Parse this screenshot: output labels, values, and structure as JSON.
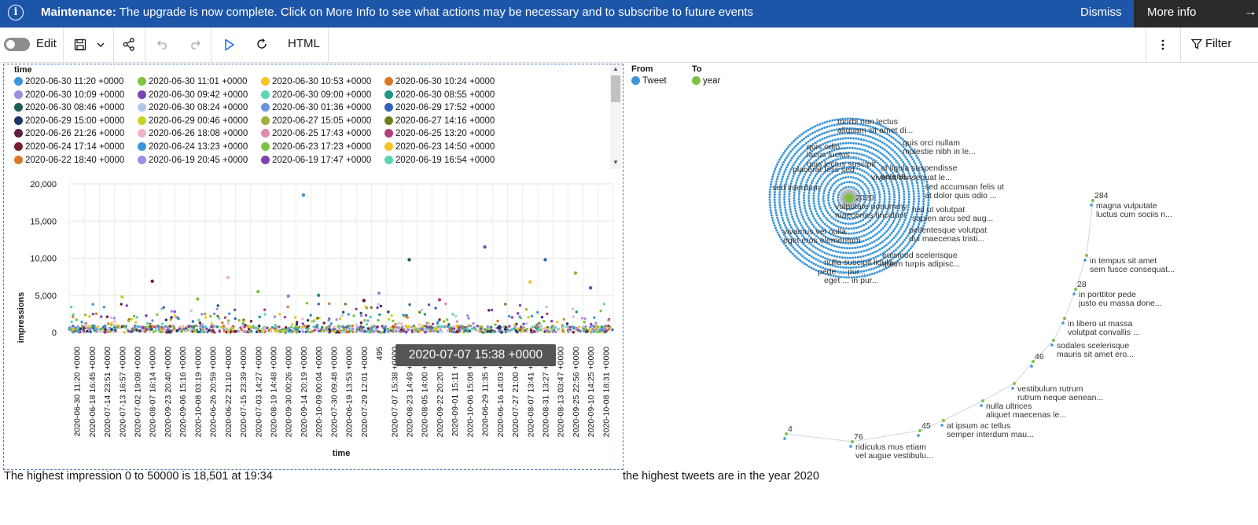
{
  "banner": {
    "title": "Maintenance:",
    "message": "The upgrade is now complete. Click on More Info to see what actions may be necessary and to subscribe to future events",
    "dismiss": "Dismiss",
    "more_info": "More info",
    "info_icon": "i",
    "arrow_icon": "→"
  },
  "toolbar": {
    "edit_label": "Edit",
    "html_label": "HTML",
    "filter_label": "Filter"
  },
  "legend": {
    "title": "time",
    "items": [
      {
        "label": "2020-06-30 11:20 +0000",
        "color": "#3a96d8"
      },
      {
        "label": "2020-06-30 11:01 +0000",
        "color": "#7ec242"
      },
      {
        "label": "2020-06-30 10:53 +0000",
        "color": "#f2c425"
      },
      {
        "label": "2020-06-30 10:24 +0000",
        "color": "#d8792c"
      },
      {
        "label": "2020-06-30 10:09 +0000",
        "color": "#9c8ee0"
      },
      {
        "label": "2020-06-30 09:42 +0000",
        "color": "#7c42b0"
      },
      {
        "label": "2020-06-30 09:00 +0000",
        "color": "#5cd6b2"
      },
      {
        "label": "2020-06-30 08:55 +0000",
        "color": "#1e968a"
      },
      {
        "label": "2020-06-30 08:46 +0000",
        "color": "#1b5e57"
      },
      {
        "label": "2020-06-30 08:24 +0000",
        "color": "#b3c7ec"
      },
      {
        "label": "2020-06-30 01:36 +0000",
        "color": "#6e93de"
      },
      {
        "label": "2020-06-29 17:52 +0000",
        "color": "#3462b8"
      },
      {
        "label": "2020-06-29 15:00 +0000",
        "color": "#1f3568"
      },
      {
        "label": "2020-06-29 00:46 +0000",
        "color": "#c9d12b"
      },
      {
        "label": "2020-06-27 15:05 +0000",
        "color": "#a3ae35"
      },
      {
        "label": "2020-06-27 14:16 +0000",
        "color": "#737c1d"
      },
      {
        "label": "2020-06-26 21:26 +0000",
        "color": "#611e44"
      },
      {
        "label": "2020-06-26 18:08 +0000",
        "color": "#f2b2cf"
      },
      {
        "label": "2020-06-25 17:43 +0000",
        "color": "#e389b6"
      },
      {
        "label": "2020-06-25 13:20 +0000",
        "color": "#b03d7c"
      },
      {
        "label": "2020-06-24 17:14 +0000",
        "color": "#7a1d33"
      },
      {
        "label": "2020-06-24 13:23 +0000",
        "color": "#3a96d8"
      },
      {
        "label": "2020-06-23 17:23 +0000",
        "color": "#7ec242"
      },
      {
        "label": "2020-06-23 14:50 +0000",
        "color": "#f2c425"
      },
      {
        "label": "2020-06-22 18:40 +0000",
        "color": "#d8792c"
      },
      {
        "label": "2020-06-19 20:45 +0000",
        "color": "#9c8ee0"
      },
      {
        "label": "2020-06-19 17:47 +0000",
        "color": "#7c42b0"
      },
      {
        "label": "2020-06-19 16:54 +0000",
        "color": "#5cd6b2"
      }
    ]
  },
  "chart_data": {
    "type": "scatter",
    "xlabel": "time",
    "ylabel": "impressions",
    "ylim": [
      0,
      20000
    ],
    "yticks": [
      "0",
      "5,000",
      "10,000",
      "15,000",
      "20,000"
    ],
    "x_ticks": [
      "2020-06-30 11:20 +0000",
      "2020-06-18 16:45 +0000",
      "2020-07-14 23:51 +0000",
      "2020-07-13 16:57 +0000",
      "2020-07-02 19:08 +0000",
      "2020-08-07 16:14 +0000",
      "2020-09-23 20:40 +0000",
      "2020-09-06 15:16 +0000",
      "2020-10-08 03:19 +0000",
      "2020-06-26 20:59 +0000",
      "2020-06-22 21:10 +0000",
      "2020-07-15 23:39 +0000",
      "2020-07-03 14:27 +0000",
      "2020-08-19 14:48 +0000",
      "2020-09-30 00:26 +0000",
      "2020-09-14 20:19 +0000",
      "2020-10-09 00:04 +0000",
      "2020-07-30 09:48 +0000",
      "2020-06-19 13:53 +0000",
      "2020-07-29 12:01 +0000",
      "495",
      "2020-07-07 15:38 +0000",
      "2020-08-23 14:49 +0000",
      "2020-08-05 14:00 +0000",
      "2020-09-22 20:20 +0000",
      "2020-09-01 15:11 +0000",
      "2020-10-06 15:08 +0000",
      "2020-06-29 11:35 +0000",
      "2020-06-16 14:03 +0000",
      "2020-07-27 21:00 +0000",
      "2020-08-07 13:41 +0000",
      "2020-08-31 13:27 +0000",
      "2020-08-13 03:47 +0000",
      "2020-09-25 22:56 +0000",
      "2020-09-10 14:25 +0000",
      "2020-10-08 18:31 +0000"
    ],
    "series": [
      {
        "values": [
          {
            "x": 15,
            "y": 18501
          }
        ]
      },
      {
        "values": [
          {
            "x": 27,
            "y": 11500
          },
          {
            "x": 22,
            "y": 9800
          },
          {
            "x": 31,
            "y": 9800
          },
          {
            "x": 33,
            "y": 8000
          },
          {
            "x": 10,
            "y": 7400
          },
          {
            "x": 5,
            "y": 6900
          },
          {
            "x": 30,
            "y": 6800
          },
          {
            "x": 34,
            "y": 6000
          },
          {
            "x": 12,
            "y": 5500
          },
          {
            "x": 20,
            "y": 5300
          },
          {
            "x": 16,
            "y": 5000
          },
          {
            "x": 14,
            "y": 4900
          },
          {
            "x": 3,
            "y": 4800
          },
          {
            "x": 19,
            "y": 4300
          },
          {
            "x": 24,
            "y": 4400
          },
          {
            "x": 8,
            "y": 4500
          }
        ]
      }
    ],
    "tooltip": "2020-07-07 15:38 +0000"
  },
  "network": {
    "legend_from_title": "From",
    "legend_to_title": "To",
    "from_label": "Tweet",
    "to_label": "year",
    "from_color": "#3a96d8",
    "to_color": "#7ec242",
    "hub_label": "2020",
    "cluster_labels": [
      "morbi non lectus",
      "aliquam sit amet di...",
      "quis orci nullam",
      "molestie nibh in le...",
      "quis odio...",
      "lacus luctus ...",
      "quis lectus suscipit",
      "at ligula suspendisse",
      "potenti...",
      "placerat felis sed",
      "viverra consequat le...",
      "sed interdum",
      "sed accumsan felis ut",
      "at dolor quis odio ...",
      "vulputate nonummy",
      "maecenas tincidunt",
      "nisl ut volutpat",
      "sapien arcu sed aug...",
      "vivamus vel nulla",
      "eget eros elementum",
      "pellentesque volutpat",
      "dui maecenas tristi...",
      "euismod scelerisque",
      "quam turpis adipisc...",
      "nulla suscipit ligula",
      "pede ... pur...",
      "eget ... in pur..."
    ],
    "chain_labels": [
      {
        "num": "284",
        "lines": [
          "magna vulputate",
          "luctus cum sociis n..."
        ]
      },
      {
        "num": "",
        "lines": [
          "in tempus sit amet",
          "sem fusce consequat..."
        ]
      },
      {
        "num": "28",
        "lines": [
          "in porttitor pede",
          "justo eu massa done..."
        ]
      },
      {
        "num": "",
        "lines": [
          "in libero ut massa",
          "volutpat convallis ..."
        ]
      },
      {
        "num": "",
        "lines": [
          "sodales scelerisque",
          "mauris sit amet ero..."
        ]
      },
      {
        "num": "46",
        "lines": []
      },
      {
        "num": "",
        "lines": [
          "vestibulum rutrum",
          "rutrum neque aenean..."
        ]
      },
      {
        "num": "",
        "lines": [
          "nulla ultrices",
          "aliquet maecenas le..."
        ]
      },
      {
        "num": "",
        "lines": [
          "at ipsum ac tellus",
          "semper interdum mau..."
        ]
      },
      {
        "num": "45",
        "lines": []
      },
      {
        "num": "76",
        "lines": [
          "ridiculus mus etiam",
          "vel augue vestibulu..."
        ]
      },
      {
        "num": "4",
        "lines": []
      }
    ]
  },
  "captions": {
    "left": "The highest impression 0 to 50000 is 18,501 at 19:34",
    "right": "the highest tweets are in the year 2020"
  }
}
